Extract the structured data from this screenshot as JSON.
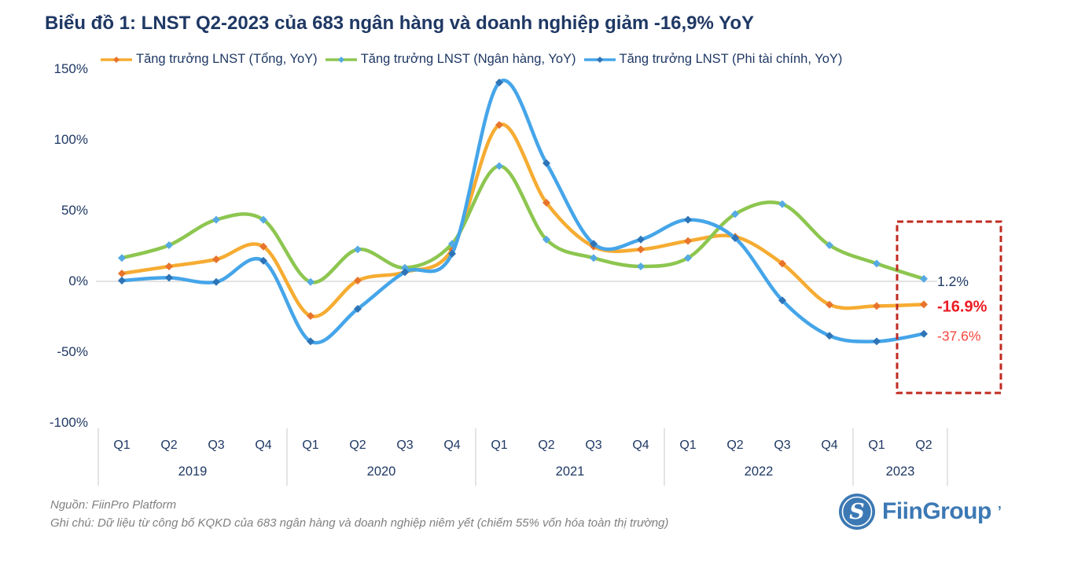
{
  "title": "Biểu đồ 1: LNST Q2-2023 của 683 ngân hàng và doanh nghiệp giảm -16,9% YoY",
  "chart_data": {
    "type": "line",
    "title": "Biểu đồ 1: LNST Q2-2023 của 683 ngân hàng và doanh nghiệp giảm -16,9% YoY",
    "legend_position": "top",
    "grid": "horizontal line at 0% only",
    "y_axis": {
      "tick_labels": [
        "150%",
        "100%",
        "50%",
        "0%",
        "-50%",
        "-100%"
      ],
      "tick_values": [
        150,
        100,
        50,
        0,
        -50,
        -100
      ],
      "range": [
        -100,
        150
      ],
      "unit": "%"
    },
    "x_axis": {
      "years": [
        {
          "label": "2019",
          "quarters": [
            "Q1",
            "Q2",
            "Q3",
            "Q4"
          ]
        },
        {
          "label": "2020",
          "quarters": [
            "Q1",
            "Q2",
            "Q3",
            "Q4"
          ]
        },
        {
          "label": "2021",
          "quarters": [
            "Q1",
            "Q2",
            "Q3",
            "Q4"
          ]
        },
        {
          "label": "2022",
          "quarters": [
            "Q1",
            "Q2",
            "Q3",
            "Q4"
          ]
        },
        {
          "label": "2023",
          "quarters": [
            "Q1",
            "Q2"
          ]
        }
      ]
    },
    "series": [
      {
        "name": "Tăng trưởng LNST (Tổng, YoY)",
        "color": "#F6AC32",
        "marker_color": "#E8742C",
        "values": [
          5,
          10,
          15,
          24,
          -25,
          0,
          6,
          22,
          110,
          55,
          24,
          22,
          28,
          31,
          12,
          -17,
          -18,
          -16.9
        ],
        "end_label": {
          "text": "-16.9%",
          "color": "#EC1C24",
          "bold": true
        }
      },
      {
        "name": "Tăng trưởng LNST (Ngân hàng, YoY)",
        "color": "#8DC650",
        "marker_color": "#55AAE2",
        "values": [
          16,
          25,
          43,
          43,
          -1,
          22,
          9,
          26,
          81,
          29,
          16,
          10,
          16,
          47,
          54,
          25,
          12,
          1.2
        ],
        "end_label": {
          "text": "1.2%",
          "color": "#1F3864",
          "bold": false
        }
      },
      {
        "name": "Tăng trưởng LNST (Phi tài chính, YoY)",
        "color": "#45A5E9",
        "marker_color": "#2E74B7",
        "values": [
          0,
          2,
          -1,
          14,
          -43,
          -20,
          6,
          19,
          140,
          83,
          26,
          29,
          43,
          30,
          -14,
          -39,
          -43,
          -37.6
        ],
        "end_label": {
          "text": "-37.6%",
          "color": "#F4473D",
          "bold": false
        }
      }
    ],
    "highlight_box": {
      "color": "#C02B20",
      "style": "dashed",
      "covers": "Q1-Q2 2023"
    }
  },
  "footer": {
    "source": "Nguồn: FiinPro Platform",
    "note": "Ghi chú: Dữ liệu từ công bố KQKD của 683 ngân hàng và doanh nghiệp niêm yết (chiếm 55% vốn hóa toàn thị trường)"
  },
  "logo": {
    "text": "FiinGroup",
    "mark": "’",
    "icon_letter": "S"
  },
  "colors": {
    "title_text": "#1F3864",
    "axis_text": "#1F3864",
    "gridline": "#D9D9D9",
    "separator": "#C9C9C9",
    "footer_text": "#808080",
    "logo_blue": "#3C79B4"
  }
}
